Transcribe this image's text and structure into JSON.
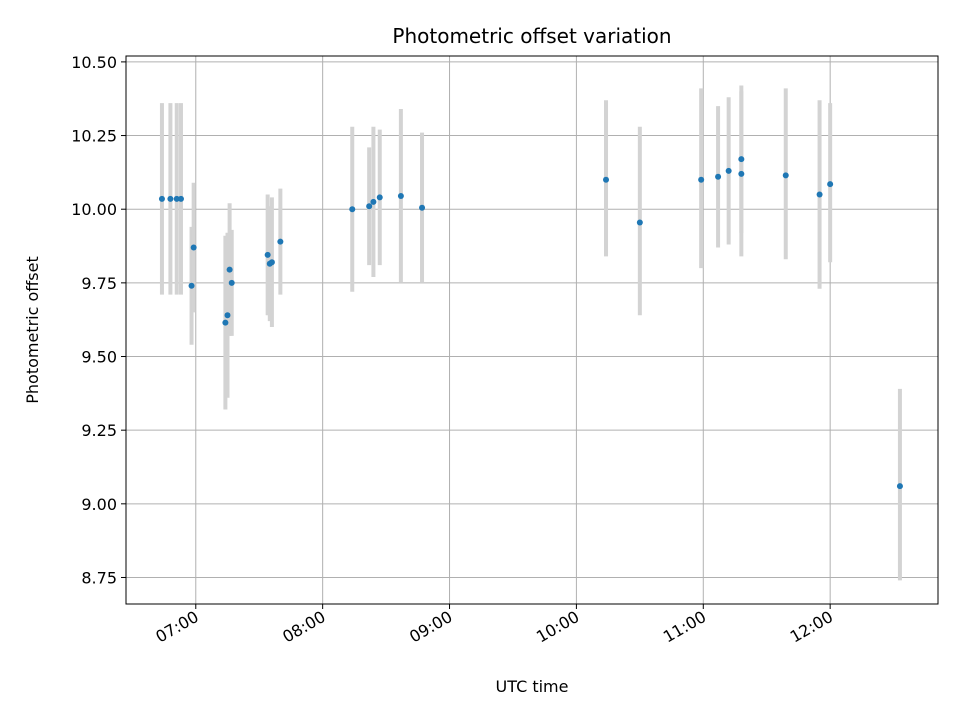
{
  "chart_data": {
    "type": "scatter",
    "title": "Photometric offset variation",
    "xlabel": "UTC time",
    "ylabel": "Photometric offset",
    "xlim": [
      "06:27",
      "12:51"
    ],
    "ylim": [
      8.66,
      10.52
    ],
    "x_ticks": [
      "07:00",
      "08:00",
      "09:00",
      "10:00",
      "11:00",
      "12:00"
    ],
    "y_ticks": [
      "8.75",
      "9.00",
      "9.25",
      "9.50",
      "9.75",
      "10.00",
      "10.25",
      "10.50"
    ],
    "grid": true,
    "marker_color": "#1f77b4",
    "errorbar_color": "#d3d3d3",
    "points": [
      {
        "t": "06:44",
        "y": 10.035,
        "lo": 9.71,
        "hi": 10.36
      },
      {
        "t": "06:48",
        "y": 10.035,
        "lo": 9.71,
        "hi": 10.36
      },
      {
        "t": "06:51",
        "y": 10.035,
        "lo": 9.71,
        "hi": 10.36
      },
      {
        "t": "06:53",
        "y": 10.035,
        "lo": 9.71,
        "hi": 10.36
      },
      {
        "t": "06:58",
        "y": 9.74,
        "lo": 9.54,
        "hi": 9.94
      },
      {
        "t": "06:59",
        "y": 9.87,
        "lo": 9.65,
        "hi": 10.09
      },
      {
        "t": "07:14",
        "y": 9.615,
        "lo": 9.32,
        "hi": 9.91
      },
      {
        "t": "07:15",
        "y": 9.64,
        "lo": 9.36,
        "hi": 9.92
      },
      {
        "t": "07:16",
        "y": 9.795,
        "lo": 9.57,
        "hi": 10.02
      },
      {
        "t": "07:17",
        "y": 9.75,
        "lo": 9.57,
        "hi": 9.93
      },
      {
        "t": "07:34",
        "y": 9.845,
        "lo": 9.64,
        "hi": 10.05
      },
      {
        "t": "07:35",
        "y": 9.815,
        "lo": 9.62,
        "hi": 10.01
      },
      {
        "t": "07:36",
        "y": 9.82,
        "lo": 9.6,
        "hi": 10.04
      },
      {
        "t": "07:40",
        "y": 9.89,
        "lo": 9.71,
        "hi": 10.07
      },
      {
        "t": "08:14",
        "y": 10.0,
        "lo": 9.72,
        "hi": 10.28
      },
      {
        "t": "08:22",
        "y": 10.01,
        "lo": 9.81,
        "hi": 10.21
      },
      {
        "t": "08:24",
        "y": 10.025,
        "lo": 9.77,
        "hi": 10.28
      },
      {
        "t": "08:27",
        "y": 10.04,
        "lo": 9.81,
        "hi": 10.27
      },
      {
        "t": "08:37",
        "y": 10.045,
        "lo": 9.75,
        "hi": 10.34
      },
      {
        "t": "08:47",
        "y": 10.005,
        "lo": 9.75,
        "hi": 10.26
      },
      {
        "t": "10:14",
        "y": 10.1,
        "lo": 9.84,
        "hi": 10.37
      },
      {
        "t": "10:30",
        "y": 9.955,
        "lo": 9.64,
        "hi": 10.28
      },
      {
        "t": "10:59",
        "y": 10.1,
        "lo": 9.8,
        "hi": 10.41
      },
      {
        "t": "11:07",
        "y": 10.11,
        "lo": 9.87,
        "hi": 10.35
      },
      {
        "t": "11:12",
        "y": 10.13,
        "lo": 9.88,
        "hi": 10.38
      },
      {
        "t": "11:18",
        "y": 10.17,
        "lo": 9.92,
        "hi": 10.42
      },
      {
        "t": "11:18",
        "y": 10.12,
        "lo": 9.84,
        "hi": 10.4
      },
      {
        "t": "11:39",
        "y": 10.115,
        "lo": 9.83,
        "hi": 10.41
      },
      {
        "t": "11:55",
        "y": 10.05,
        "lo": 9.73,
        "hi": 10.37
      },
      {
        "t": "12:00",
        "y": 10.085,
        "lo": 9.82,
        "hi": 10.36
      },
      {
        "t": "12:33",
        "y": 9.06,
        "lo": 8.74,
        "hi": 9.39
      }
    ]
  }
}
